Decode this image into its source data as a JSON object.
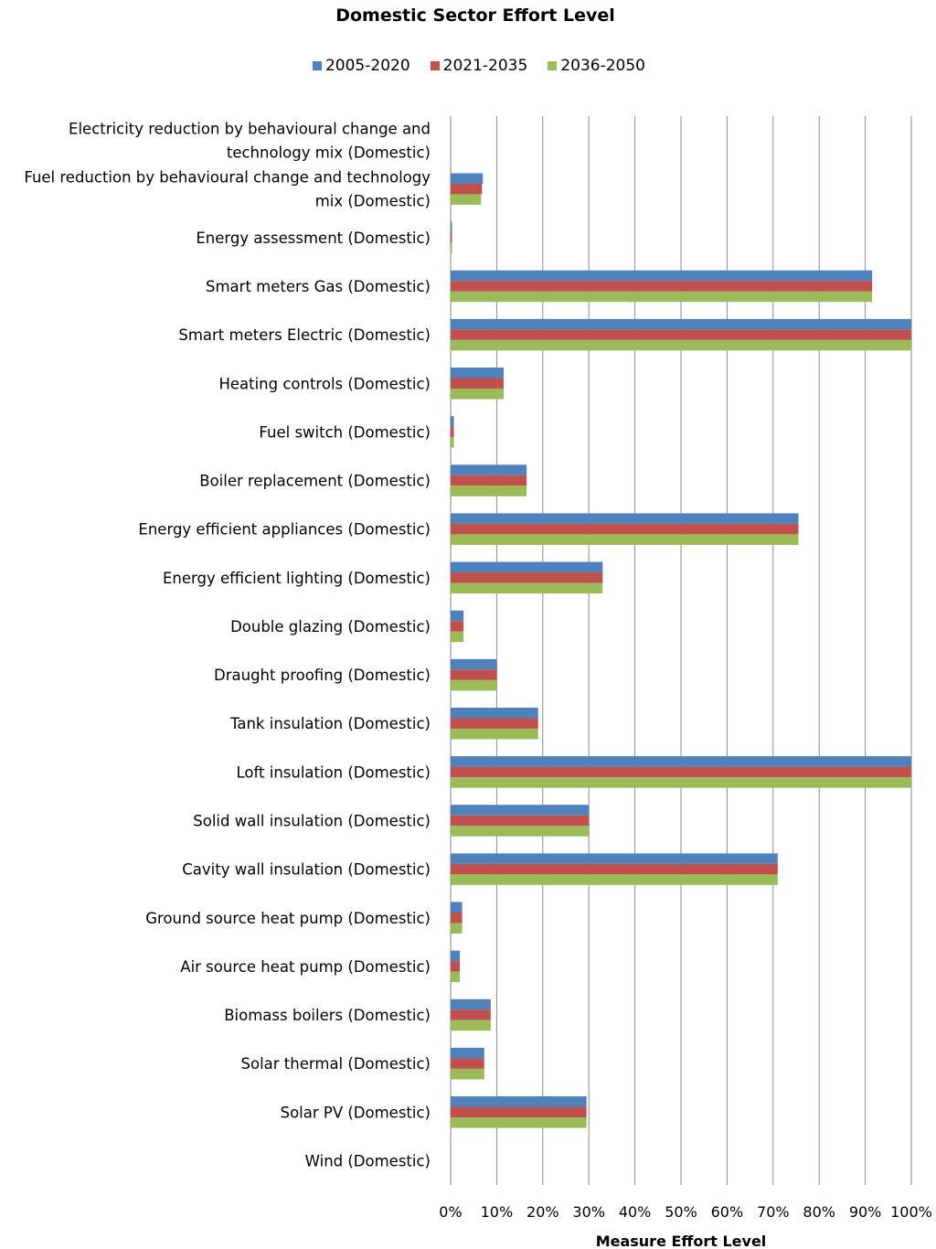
{
  "chart_data": {
    "type": "bar",
    "orientation": "horizontal",
    "title": "Domestic Sector Effort Level",
    "xlabel": "Measure Effort Level",
    "ylabel": "",
    "xlim": [
      0,
      100
    ],
    "x_ticks": [
      "0%",
      "10%",
      "20%",
      "30%",
      "40%",
      "50%",
      "60%",
      "70%",
      "80%",
      "90%",
      "100%"
    ],
    "grid": "vertical",
    "legend_position": "top",
    "categories": [
      [
        "Electricity reduction by behavioural change and",
        "technology mix (Domestic)"
      ],
      [
        "Fuel reduction by behavioural change and technology",
        "mix (Domestic)"
      ],
      [
        "Energy assessment (Domestic)"
      ],
      [
        "Smart meters Gas (Domestic)"
      ],
      [
        "Smart meters Electric (Domestic)"
      ],
      [
        "Heating controls (Domestic)"
      ],
      [
        "Fuel switch (Domestic)"
      ],
      [
        "Boiler replacement (Domestic)"
      ],
      [
        "Energy efficient appliances (Domestic)"
      ],
      [
        "Energy efficient lighting (Domestic)"
      ],
      [
        "Double glazing (Domestic)"
      ],
      [
        "Draught proofing (Domestic)"
      ],
      [
        "Tank insulation (Domestic)"
      ],
      [
        "Loft insulation (Domestic)"
      ],
      [
        "Solid wall insulation (Domestic)"
      ],
      [
        "Cavity wall insulation (Domestic)"
      ],
      [
        "Ground source heat pump (Domestic)"
      ],
      [
        "Air source heat pump (Domestic)"
      ],
      [
        "Biomass boilers (Domestic)"
      ],
      [
        "Solar thermal (Domestic)"
      ],
      [
        "Solar PV (Domestic)"
      ],
      [
        "Wind (Domestic)"
      ]
    ],
    "series": [
      {
        "name": "2005-2020",
        "color": "#4f81bd",
        "values": [
          0,
          7,
          0.3,
          91.5,
          100,
          11.5,
          0.7,
          16.5,
          75.5,
          33,
          2.8,
          10,
          19,
          100,
          30,
          71,
          2.5,
          2,
          8.7,
          7.3,
          29.5,
          0
        ]
      },
      {
        "name": "2021-2035",
        "color": "#c0504d",
        "values": [
          0,
          6.8,
          0.3,
          91.5,
          100,
          11.5,
          0.7,
          16.5,
          75.5,
          33,
          2.8,
          10,
          19,
          100,
          30,
          71,
          2.5,
          2,
          8.7,
          7.3,
          29.5,
          0
        ]
      },
      {
        "name": "2036-2050",
        "color": "#9bbb59",
        "values": [
          0,
          6.6,
          0.3,
          91.5,
          100,
          11.5,
          0.7,
          16.5,
          75.5,
          33,
          2.8,
          10,
          19,
          100,
          30,
          71,
          2.5,
          2,
          8.7,
          7.3,
          29.5,
          0
        ]
      }
    ]
  }
}
